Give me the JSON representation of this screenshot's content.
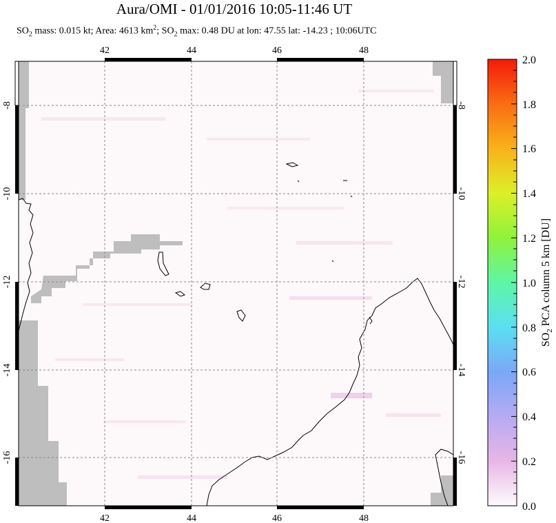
{
  "title": "Aura/OMI - 01/01/2016 10:05-11:46 UT",
  "subtitle": {
    "so2_prefix": "SO",
    "so2_sub": "2",
    "mass_area": " mass: 0.015 kt; Area: 4613 km",
    "area_sup": "2",
    "so2_max_prefix": "; SO",
    "so2_max_sub": "2",
    "rest": " max: 0.48 DU at lon: 47.55 lat: -14.23 ; 10:06UTC"
  },
  "map": {
    "lon_range": [
      40,
      50
    ],
    "lat_range": [
      -17,
      -7
    ],
    "lon_ticks": [
      "42",
      "44",
      "46",
      "48"
    ],
    "lat_ticks": [
      "-8",
      "-10",
      "-12",
      "-14",
      "-16"
    ],
    "grid": "dashed",
    "colors": {
      "frame": "#000000",
      "grid": "#888888",
      "no_data": "#bebebe",
      "coast": "#000000",
      "background": "#fdf8f9",
      "trace_pink": "#f6e4ef"
    }
  },
  "colorbar": {
    "label_prefix": "SO",
    "label_sub": "2",
    "label_rest": " PCA column 5 km [DU]",
    "ticks": [
      "2.0",
      "1.8",
      "1.6",
      "1.4",
      "1.2",
      "1.0",
      "0.8",
      "0.6",
      "0.4",
      "0.2",
      "0.0"
    ],
    "range": [
      0.0,
      2.0
    ],
    "stops": [
      "#fdfbfd",
      "#e8b6e6",
      "#b7aaf3",
      "#7aa8f7",
      "#5cdff2",
      "#5ef6a6",
      "#8ff23c",
      "#dcf028",
      "#f9b21b",
      "#f96d13",
      "#f51a0a"
    ]
  }
}
